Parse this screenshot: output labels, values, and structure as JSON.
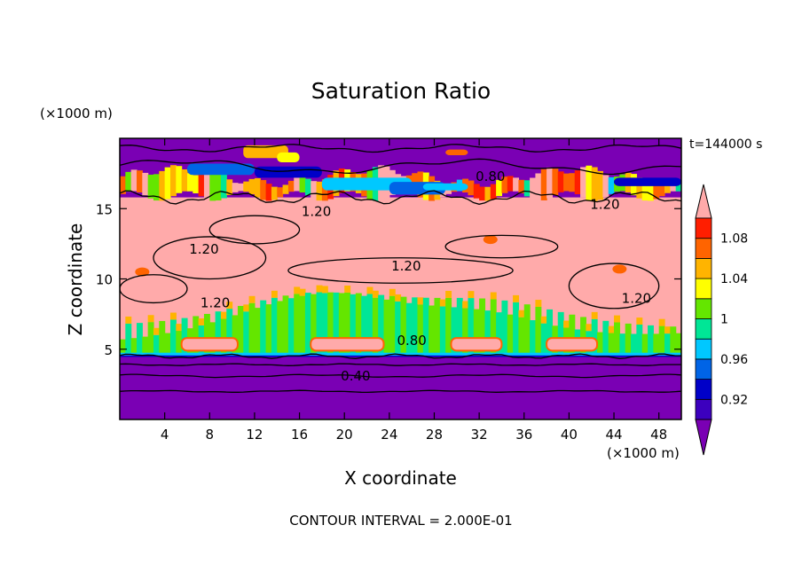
{
  "chart_data": {
    "type": "heatmap",
    "title": "Saturation Ratio",
    "xlabel": "X coordinate",
    "ylabel": "Z coordinate",
    "x_unit": "(×1000 m)",
    "y_unit": "(×1000 m)",
    "time_label": "t=144000 s",
    "footer": "CONTOUR INTERVAL = 2.000E-01",
    "xlim": [
      0,
      50
    ],
    "ylim": [
      0,
      20
    ],
    "xticks": [
      4,
      8,
      12,
      16,
      20,
      24,
      28,
      32,
      36,
      40,
      44,
      48
    ],
    "yticks": [
      5,
      10,
      15
    ],
    "colorbar": {
      "levels": [
        0.92,
        0.94,
        0.96,
        0.98,
        1,
        1.02,
        1.04,
        1.06,
        1.08,
        1.1
      ],
      "tick_labels": [
        "0.92",
        "0.96",
        "1",
        "1.04",
        "1.08"
      ],
      "colors": [
        "#7a00b4",
        "#3c00be",
        "#0000c8",
        "#0064e6",
        "#00c8ff",
        "#00e696",
        "#64e600",
        "#ffff00",
        "#ffb400",
        "#ff6400",
        "#ff1e00",
        "#ffaaaa"
      ],
      "extend": "both"
    },
    "contour_labels": [
      {
        "text": "0.80",
        "x": 26.0,
        "z": 5.6
      },
      {
        "text": "0.40",
        "x": 21.0,
        "z": 3.1
      },
      {
        "text": "0.80",
        "x": 33.0,
        "z": 17.3
      },
      {
        "text": "1.20",
        "x": 17.5,
        "z": 14.8
      },
      {
        "text": "1.20",
        "x": 43.2,
        "z": 15.3
      },
      {
        "text": "1.20",
        "x": 7.5,
        "z": 12.1
      },
      {
        "text": "1.20",
        "x": 25.5,
        "z": 10.9
      },
      {
        "text": "1.20",
        "x": 46.0,
        "z": 8.6
      },
      {
        "text": "1.20",
        "x": 8.5,
        "z": 8.3
      }
    ],
    "regions": {
      "lower_dry_layer_top_z": 4.6,
      "cloud_layer_z": [
        4.6,
        9.5
      ],
      "supersaturated_layer_z": [
        9.5,
        15.8
      ],
      "upper_mixed_layer_z": [
        15.8,
        18.2
      ],
      "top_dry_layer_z": [
        18.2,
        20
      ]
    }
  }
}
